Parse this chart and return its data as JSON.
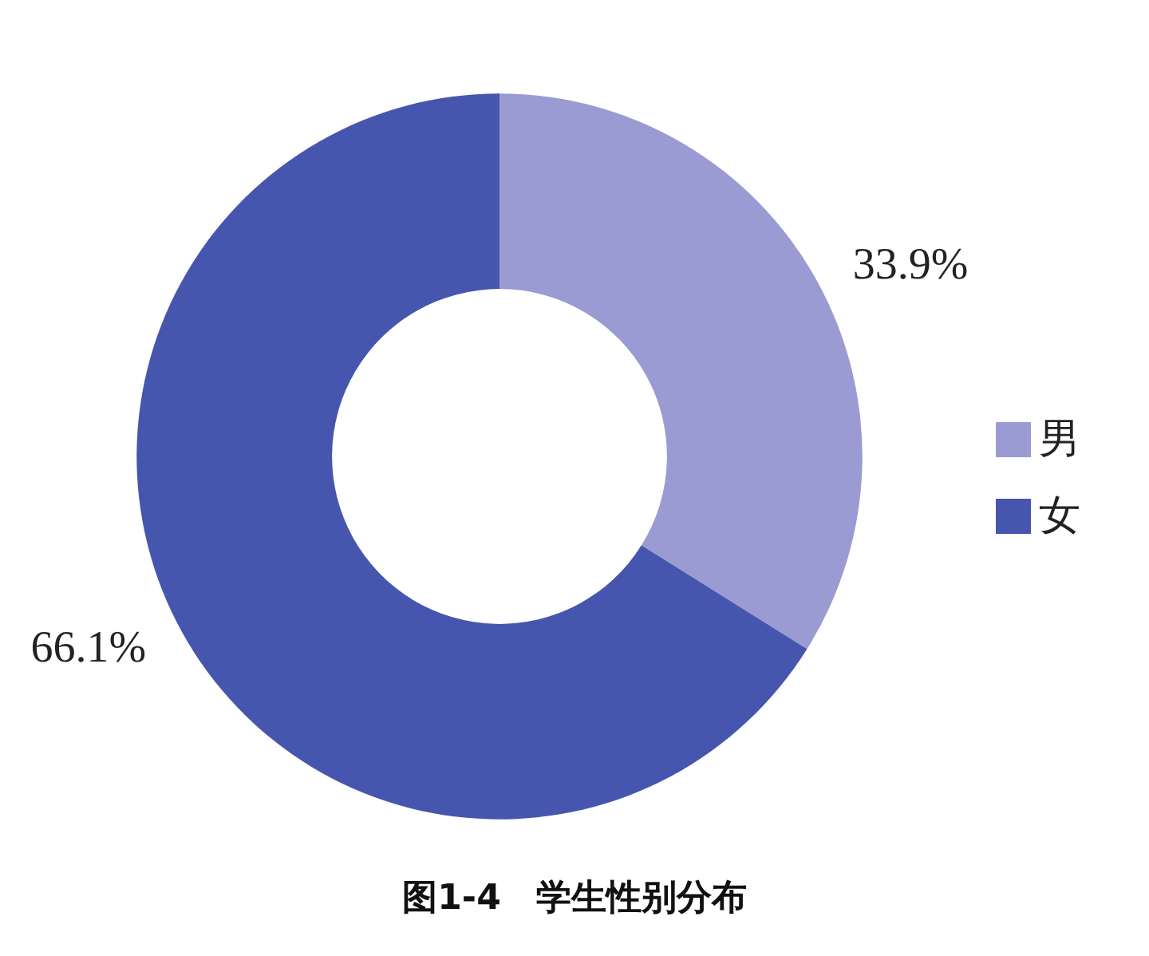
{
  "chart_data": {
    "type": "donut",
    "title": "图1-4　学生性别分布",
    "categories": [
      "男",
      "女"
    ],
    "values": [
      33.9,
      66.1
    ],
    "colors": [
      "#9b9bd4",
      "#4656ae"
    ],
    "value_labels": [
      "33.9%",
      "66.1%"
    ],
    "legend": "right"
  }
}
